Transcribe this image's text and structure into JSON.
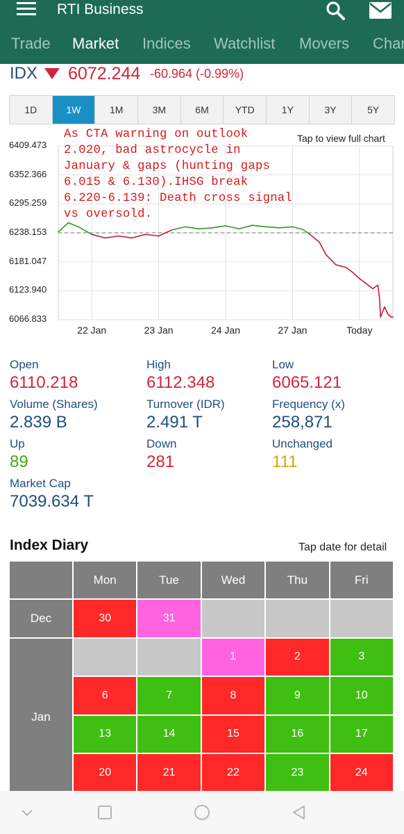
{
  "app": {
    "title": "RTI Business",
    "tabs": [
      "Trade",
      "Market",
      "Indices",
      "Watchlist",
      "Movers",
      "Chart"
    ],
    "active_tab": "Market",
    "header_color": "#1e6b55"
  },
  "index": {
    "code": "IDX",
    "price": "6072.244",
    "change": "-60.964 (-0.99%)",
    "direction": "down",
    "down_color": "#d0263a"
  },
  "ranges": {
    "items": [
      "1D",
      "1W",
      "1M",
      "3M",
      "6M",
      "YTD",
      "1Y",
      "3Y",
      "5Y"
    ],
    "active": "1W",
    "active_color": "#1a8fc6"
  },
  "chart": {
    "tap_label": "Tap to view full chart",
    "annotation": "As CTA warning on outlook 2.020, bad astrocycle in January & gaps (hunting gaps 6.015 & 6.130).IHSG break 6.220-6.139: Death cross signal vs oversold."
  },
  "chart_data": {
    "type": "line",
    "y_tick_labels": [
      "6409.473",
      "6352.366",
      "6295.259",
      "6238.153",
      "6181.047",
      "6123.940",
      "6066.833"
    ],
    "ylim": [
      6066.833,
      6409.473
    ],
    "x_tick_labels": [
      "22 Jan",
      "23 Jan",
      "24 Jan",
      "27 Jan",
      "Today"
    ],
    "reference_line": 6238.153,
    "grid": true,
    "series": [
      {
        "color_above_ref": "#2e9a1e",
        "color_below_ref": "#c8193c",
        "points": [
          [
            0.0,
            6240
          ],
          [
            0.03,
            6258
          ],
          [
            0.06,
            6250
          ],
          [
            0.1,
            6235
          ],
          [
            0.14,
            6228
          ],
          [
            0.18,
            6232
          ],
          [
            0.22,
            6228
          ],
          [
            0.26,
            6235
          ],
          [
            0.3,
            6232
          ],
          [
            0.34,
            6244
          ],
          [
            0.38,
            6250
          ],
          [
            0.42,
            6246
          ],
          [
            0.46,
            6248
          ],
          [
            0.5,
            6252
          ],
          [
            0.54,
            6246
          ],
          [
            0.58,
            6253
          ],
          [
            0.62,
            6250
          ],
          [
            0.66,
            6248
          ],
          [
            0.7,
            6250
          ],
          [
            0.73,
            6245
          ],
          [
            0.75,
            6236
          ],
          [
            0.78,
            6220
          ],
          [
            0.8,
            6195
          ],
          [
            0.83,
            6175
          ],
          [
            0.86,
            6170
          ],
          [
            0.88,
            6160
          ],
          [
            0.9,
            6148
          ],
          [
            0.92,
            6138
          ],
          [
            0.94,
            6128
          ],
          [
            0.955,
            6135
          ],
          [
            0.96,
            6110
          ],
          [
            0.963,
            6072
          ],
          [
            0.975,
            6092
          ],
          [
            0.985,
            6078
          ],
          [
            0.995,
            6072
          ],
          [
            1.0,
            6072
          ]
        ]
      }
    ]
  },
  "stats": {
    "open": {
      "label": "Open",
      "value": "6110.218"
    },
    "high": {
      "label": "High",
      "value": "6112.348"
    },
    "low": {
      "label": "Low",
      "value": "6065.121"
    },
    "volume": {
      "label": "Volume (Shares)",
      "value": "2.839 B"
    },
    "turnover": {
      "label": "Turnover (IDR)",
      "value": "2.491 T"
    },
    "frequency": {
      "label": "Frequency (x)",
      "value": "258,871"
    },
    "up": {
      "label": "Up",
      "value": "89"
    },
    "down": {
      "label": "Down",
      "value": "281"
    },
    "unchanged": {
      "label": "Unchanged",
      "value": "111"
    },
    "mcap": {
      "label": "Market Cap",
      "value": "7039.634 T"
    }
  },
  "diary": {
    "title": "Index Diary",
    "tap_label": "Tap date for detail",
    "days": [
      "Mon",
      "Tue",
      "Wed",
      "Thu",
      "Fri"
    ],
    "months": [
      "Dec",
      "Jan"
    ],
    "colors": {
      "red": "#ff2828",
      "green": "#3fbf12",
      "pink": "#ff63e0",
      "empty": "#c8c8c8",
      "header": "#7f7f7f"
    },
    "rows": [
      [
        {
          "d": "30",
          "s": "red"
        },
        {
          "d": "31",
          "s": "pink"
        },
        {
          "d": "",
          "s": "grey"
        },
        {
          "d": "",
          "s": "grey"
        },
        {
          "d": "",
          "s": "grey"
        }
      ],
      [
        {
          "d": "",
          "s": "grey"
        },
        {
          "d": "",
          "s": "grey"
        },
        {
          "d": "1",
          "s": "pink"
        },
        {
          "d": "2",
          "s": "red"
        },
        {
          "d": "3",
          "s": "green"
        }
      ],
      [
        {
          "d": "6",
          "s": "red"
        },
        {
          "d": "7",
          "s": "green"
        },
        {
          "d": "8",
          "s": "red"
        },
        {
          "d": "9",
          "s": "green"
        },
        {
          "d": "10",
          "s": "green"
        }
      ],
      [
        {
          "d": "13",
          "s": "green"
        },
        {
          "d": "14",
          "s": "green"
        },
        {
          "d": "15",
          "s": "red"
        },
        {
          "d": "16",
          "s": "green"
        },
        {
          "d": "17",
          "s": "green"
        }
      ],
      [
        {
          "d": "20",
          "s": "red"
        },
        {
          "d": "21",
          "s": "red"
        },
        {
          "d": "22",
          "s": "red"
        },
        {
          "d": "23",
          "s": "green"
        },
        {
          "d": "24",
          "s": "red"
        }
      ]
    ]
  },
  "navbar": {
    "icons": [
      "chevron-down-icon",
      "square-icon",
      "circle-icon",
      "back-triangle-icon"
    ]
  }
}
